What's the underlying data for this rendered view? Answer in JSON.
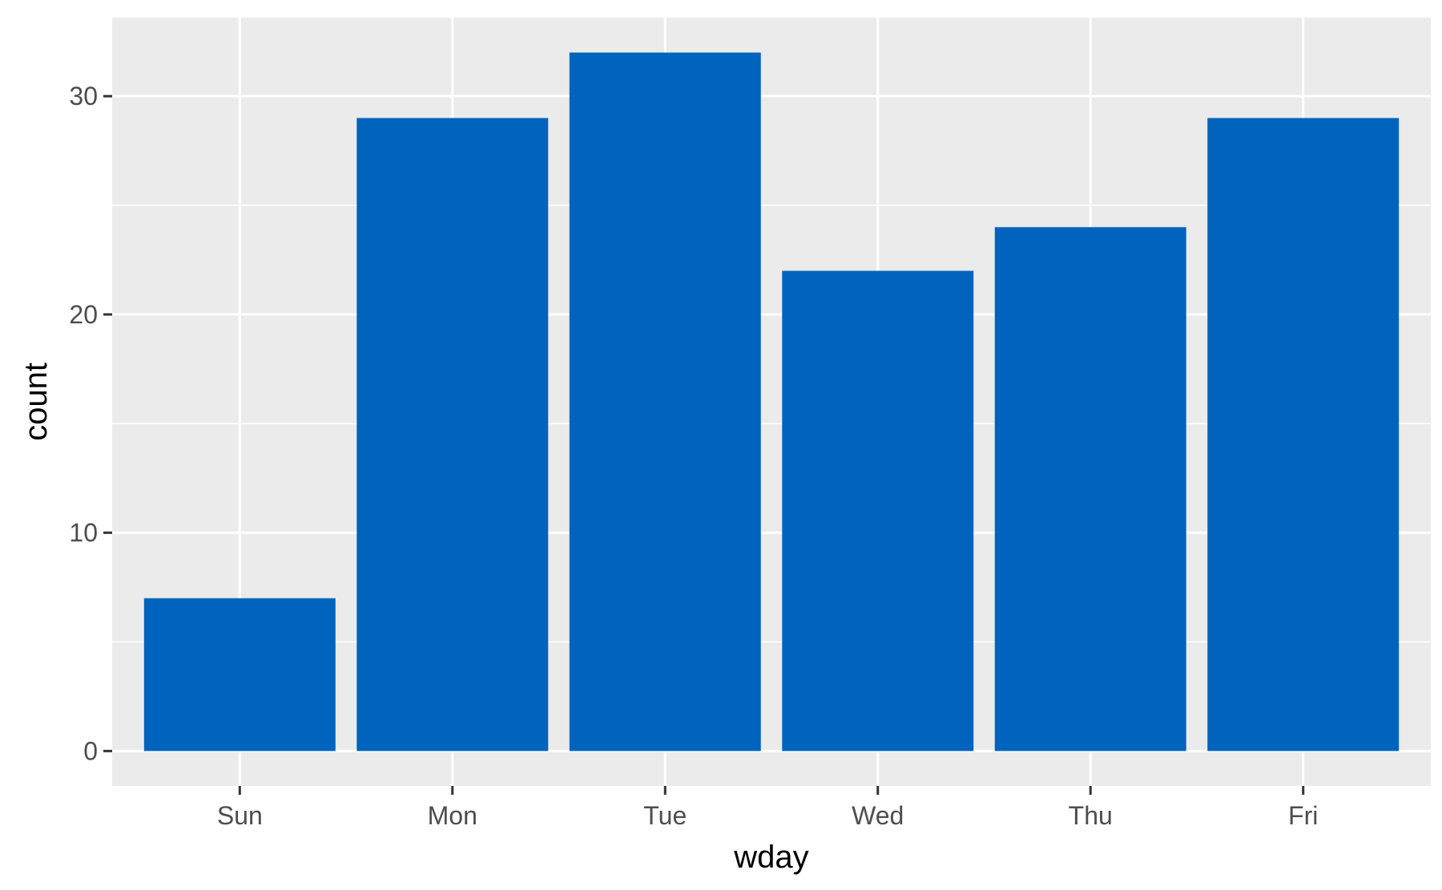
{
  "chart_data": {
    "type": "bar",
    "categories": [
      "Sun",
      "Mon",
      "Tue",
      "Wed",
      "Thu",
      "Fri"
    ],
    "values": [
      7,
      29,
      32,
      22,
      24,
      29
    ],
    "title": "",
    "xlabel": "wday",
    "ylabel": "count",
    "ylim": [
      -1.6,
      33.6
    ],
    "yticks": [
      0,
      10,
      20,
      30
    ],
    "yticks_minor": [
      5,
      15,
      25
    ],
    "grid": true,
    "legend": "none",
    "colors": {
      "bar": "#0064BE",
      "panel": "#EBEBEB",
      "grid": "#FFFFFF",
      "tick_text": "#4D4D4D",
      "axis_title": "#000000",
      "tick_mark": "#333333"
    }
  }
}
